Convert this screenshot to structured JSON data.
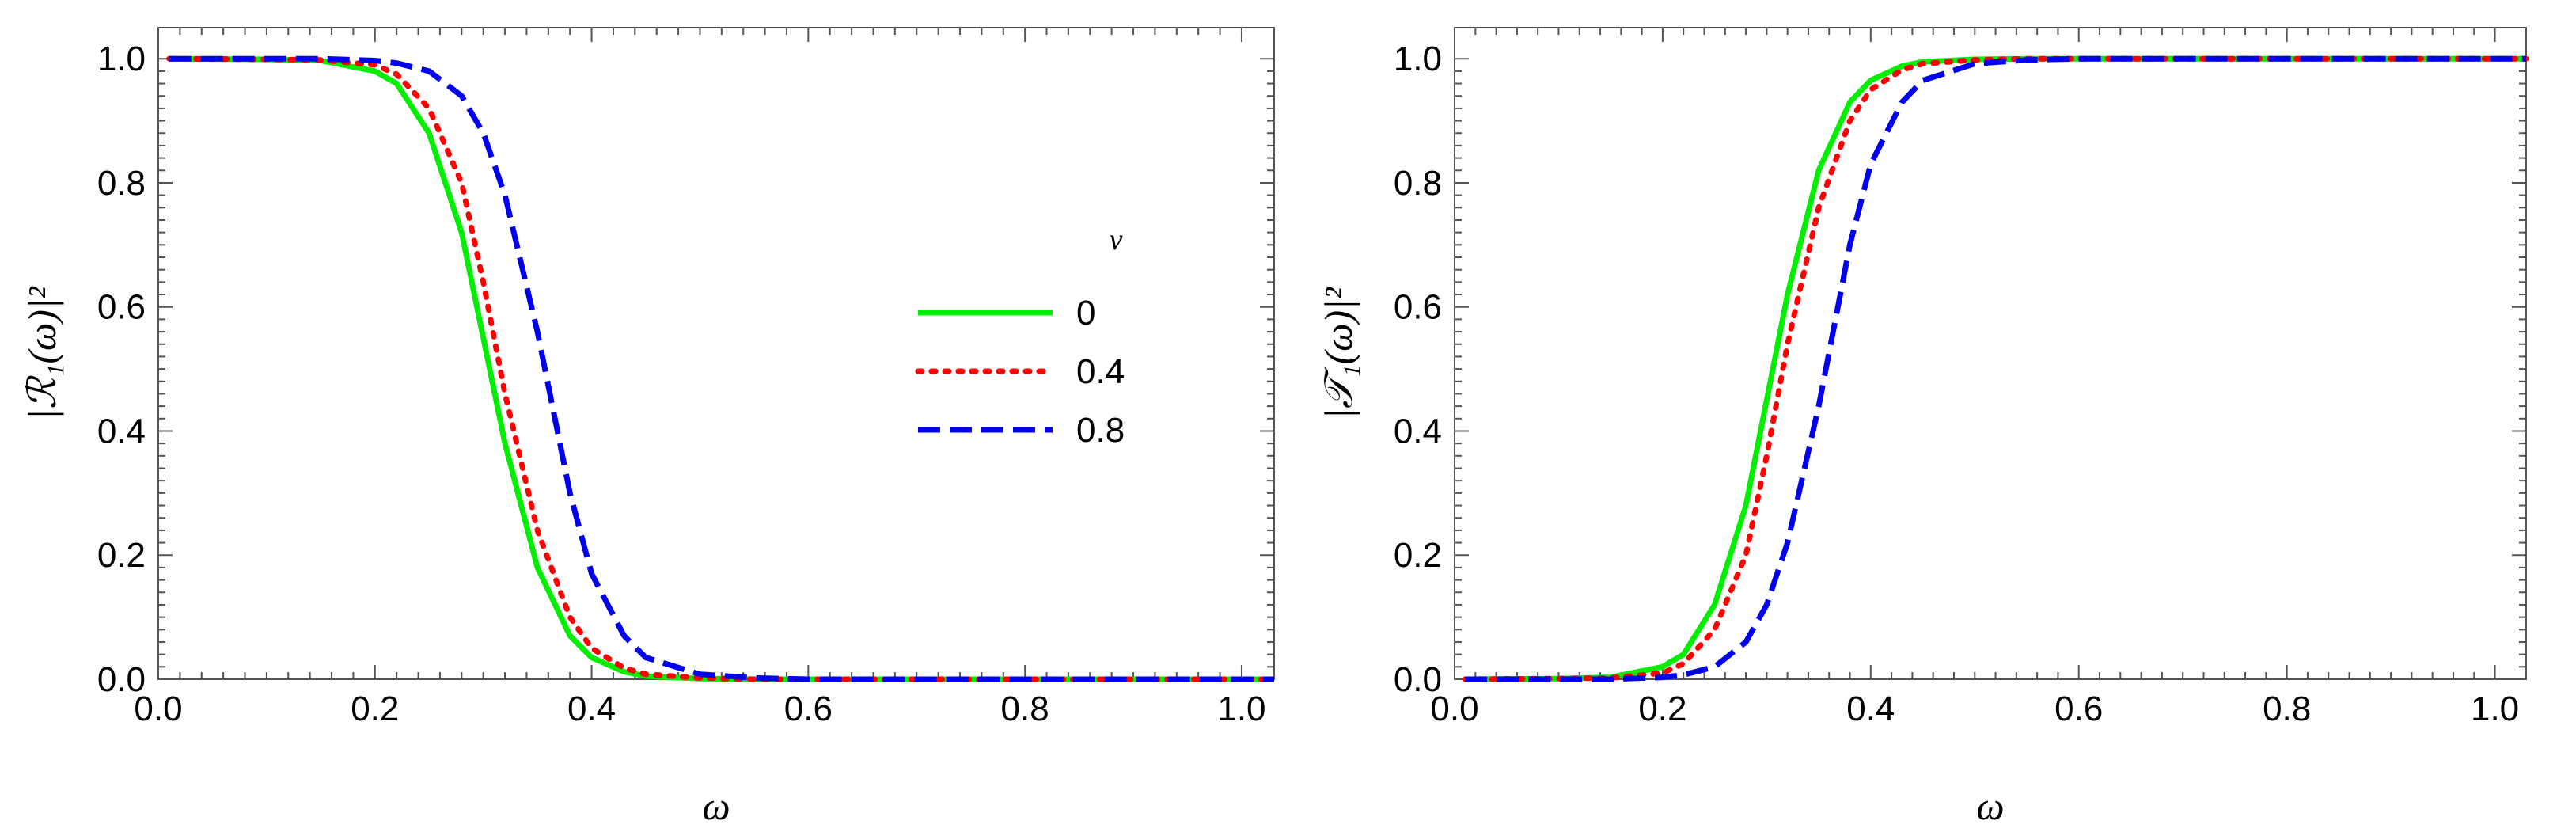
{
  "chart_data": [
    {
      "type": "line",
      "title": "",
      "xlabel": "ω",
      "ylabel": "|ℛ₁(ω)|²",
      "xlim": [
        0.0,
        1.03
      ],
      "ylim": [
        0.0,
        1.05
      ],
      "x_ticks": [
        "0.0",
        "0.2",
        "0.4",
        "0.6",
        "0.8",
        "1.0"
      ],
      "y_ticks": [
        "0.0",
        "0.2",
        "0.4",
        "0.6",
        "0.8",
        "1.0"
      ],
      "grid": false,
      "legend": {
        "title": "ν",
        "placement": "center-right",
        "entries": [
          "0",
          "0.4",
          "0.8"
        ]
      },
      "x": [
        0.01,
        0.1,
        0.15,
        0.2,
        0.22,
        0.25,
        0.28,
        0.3,
        0.32,
        0.35,
        0.38,
        0.4,
        0.43,
        0.45,
        0.5,
        0.55,
        0.6,
        0.7,
        0.8,
        1.03
      ],
      "series": [
        {
          "name": "0",
          "color": "#00ee00",
          "dash": "solid",
          "values": [
            1.0,
            0.999,
            0.997,
            0.98,
            0.96,
            0.88,
            0.72,
            0.55,
            0.38,
            0.18,
            0.07,
            0.035,
            0.012,
            0.005,
            0.001,
            0.0,
            0.0,
            0.0,
            0.0,
            0.0
          ]
        },
        {
          "name": "0.4",
          "color": "#ff0000",
          "dash": "dotted",
          "values": [
            1.0,
            0.999,
            0.998,
            0.99,
            0.975,
            0.92,
            0.8,
            0.64,
            0.46,
            0.24,
            0.1,
            0.05,
            0.018,
            0.008,
            0.002,
            0.0,
            0.0,
            0.0,
            0.0,
            0.0
          ]
        },
        {
          "name": "0.8",
          "color": "#0000ee",
          "dash": "dashed",
          "values": [
            1.0,
            1.0,
            1.0,
            0.997,
            0.993,
            0.98,
            0.94,
            0.88,
            0.78,
            0.56,
            0.3,
            0.17,
            0.07,
            0.035,
            0.008,
            0.002,
            0.0,
            0.0,
            0.0,
            0.0
          ]
        }
      ]
    },
    {
      "type": "line",
      "title": "",
      "xlabel": "ω",
      "ylabel": "|𝒯₁(ω)|²",
      "xlim": [
        0.0,
        1.03
      ],
      "ylim": [
        0.0,
        1.05
      ],
      "x_ticks": [
        "0.0",
        "0.2",
        "0.4",
        "0.6",
        "0.8",
        "1.0"
      ],
      "y_ticks": [
        "0.0",
        "0.2",
        "0.4",
        "0.6",
        "0.8",
        "1.0"
      ],
      "grid": false,
      "x": [
        0.01,
        0.1,
        0.15,
        0.2,
        0.22,
        0.25,
        0.28,
        0.3,
        0.32,
        0.35,
        0.38,
        0.4,
        0.43,
        0.45,
        0.5,
        0.55,
        0.6,
        0.7,
        0.8,
        1.03
      ],
      "series": [
        {
          "name": "0",
          "color": "#00ee00",
          "dash": "solid",
          "values": [
            0.0,
            0.001,
            0.003,
            0.02,
            0.04,
            0.12,
            0.28,
            0.45,
            0.62,
            0.82,
            0.93,
            0.965,
            0.988,
            0.995,
            0.999,
            1.0,
            1.0,
            1.0,
            1.0,
            1.0
          ]
        },
        {
          "name": "0.4",
          "color": "#ff0000",
          "dash": "dotted",
          "values": [
            0.0,
            0.001,
            0.002,
            0.01,
            0.025,
            0.08,
            0.2,
            0.36,
            0.54,
            0.76,
            0.9,
            0.95,
            0.982,
            0.992,
            0.998,
            1.0,
            1.0,
            1.0,
            1.0,
            1.0
          ]
        },
        {
          "name": "0.8",
          "color": "#0000ee",
          "dash": "dashed",
          "values": [
            0.0,
            0.0,
            0.0,
            0.003,
            0.007,
            0.02,
            0.06,
            0.12,
            0.22,
            0.44,
            0.7,
            0.83,
            0.93,
            0.965,
            0.992,
            0.998,
            1.0,
            1.0,
            1.0,
            1.0
          ]
        }
      ]
    }
  ]
}
